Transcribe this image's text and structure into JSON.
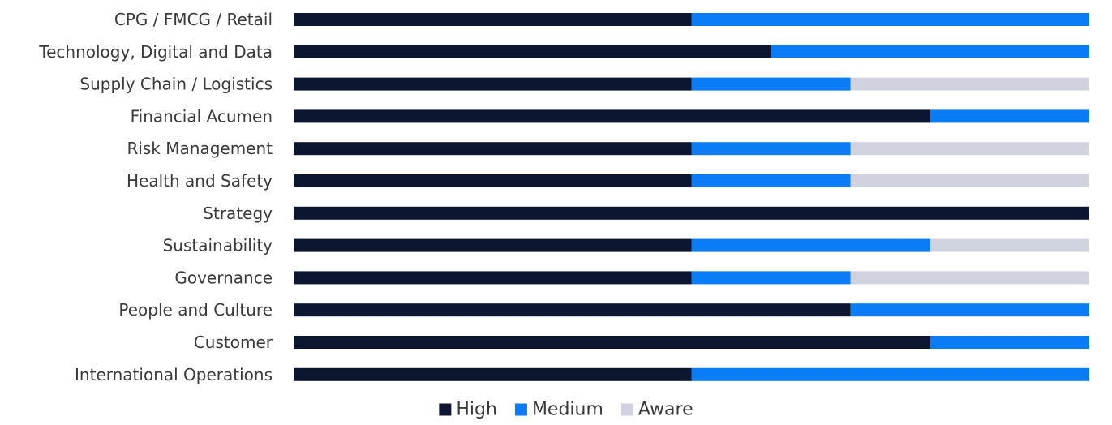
{
  "chart_data": {
    "type": "bar",
    "orientation": "horizontal",
    "stacked": true,
    "stack_mode": "percent",
    "grid": false,
    "legend": "bottom-center",
    "categories": [
      "CPG / FMCG / Retail",
      "Technology, Digital and Data",
      "Supply Chain / Logistics",
      "Financial Acumen",
      "Risk Management",
      "Health and Safety",
      "Strategy",
      "Sustainability",
      "Governance",
      "People and Culture",
      "Customer",
      "International Operations"
    ],
    "series": [
      {
        "name": "High",
        "color": "#0c1630",
        "values": [
          50,
          60,
          50,
          80,
          50,
          50,
          100,
          50,
          50,
          70,
          80,
          50
        ]
      },
      {
        "name": "Medium",
        "color": "#0a7cf5",
        "values": [
          50,
          40,
          20,
          20,
          20,
          20,
          0,
          30,
          20,
          30,
          20,
          50
        ]
      },
      {
        "name": "Aware",
        "color": "#d0d3df",
        "values": [
          0,
          0,
          30,
          0,
          30,
          30,
          0,
          20,
          30,
          0,
          0,
          0
        ]
      }
    ],
    "xlim": [
      0,
      100
    ]
  }
}
